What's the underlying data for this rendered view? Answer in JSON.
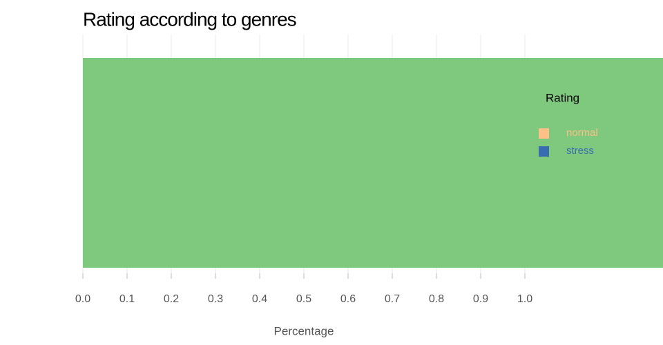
{
  "chart_data": {
    "type": "bar",
    "orientation": "horizontal",
    "title": "Rating according to genres",
    "categories": [
      null
    ],
    "values": [
      1.3125
    ],
    "color": "#7fc97f",
    "xlabel": "Percentage",
    "xlim": [
      0,
      1.3125
    ],
    "xticks": [
      {
        "value": 0,
        "label": "0.0"
      },
      0.1,
      0.2,
      0.3,
      0.4,
      0.5,
      0.6,
      0.7,
      0.8,
      0.9,
      {
        "value": 1,
        "label": "1.0"
      }
    ],
    "grid": true,
    "legend": {
      "title": "Rating",
      "position": "right",
      "entries": [
        {
          "name": "normal",
          "color": "#fdc086"
        },
        {
          "name": "stress",
          "color": "#386cb0"
        }
      ]
    }
  }
}
